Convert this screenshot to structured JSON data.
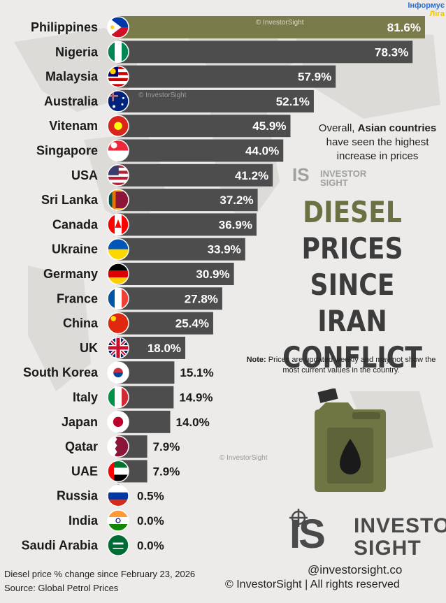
{
  "colors": {
    "bar": "#4d4d4d",
    "highlight": "#7a7b4a",
    "olive": "#6d7042",
    "dark": "#3c3c3c",
    "bg": "#ecebe9"
  },
  "chart_data": {
    "type": "bar",
    "orientation": "horizontal",
    "categories": [
      "Philippines",
      "Nigeria",
      "Malaysia",
      "Australia",
      "Vitenam",
      "Singapore",
      "USA",
      "Sri Lanka",
      "Canada",
      "Ukraine",
      "Germany",
      "France",
      "China",
      "UK",
      "South Korea",
      "Italy",
      "Japan",
      "Qatar",
      "UAE",
      "Russia",
      "India",
      "Saudi Arabia"
    ],
    "values": [
      81.6,
      78.3,
      57.9,
      52.1,
      45.9,
      44.0,
      41.2,
      37.2,
      36.9,
      33.9,
      30.9,
      27.8,
      25.4,
      18.0,
      15.1,
      14.9,
      14.0,
      7.9,
      7.9,
      0.5,
      0.0,
      0.0
    ],
    "labels": [
      "81.6%",
      "78.3%",
      "57.9%",
      "52.1%",
      "45.9%",
      "44.0%",
      "41.2%",
      "37.2%",
      "36.9%",
      "33.9%",
      "30.9%",
      "27.8%",
      "25.4%",
      "18.0%",
      "15.1%",
      "14.9%",
      "14.0%",
      "7.9%",
      "7.9%",
      "0.5%",
      "0.0%",
      "0.0%"
    ],
    "flags": [
      "philippines-flag",
      "nigeria-flag",
      "malaysia-flag",
      "australia-flag",
      "vietnam-flag",
      "singapore-flag",
      "usa-flag",
      "sri-lanka-flag",
      "canada-flag",
      "ukraine-flag",
      "germany-flag",
      "france-flag",
      "china-flag",
      "uk-flag",
      "south-korea-flag",
      "italy-flag",
      "japan-flag",
      "qatar-flag",
      "uae-flag",
      "russia-flag",
      "india-flag",
      "saudi-arabia-flag"
    ],
    "highlighted": "Philippines",
    "xlim": [
      0,
      81.6
    ],
    "grid": false,
    "title": "DIESEL PRICES SINCE IRAN CONFLICT",
    "xlabel": "",
    "ylabel": ""
  },
  "title_lines": [
    "DIESEL",
    "PRICES",
    "SINCE IRAN",
    "CONFLICT"
  ],
  "insight": {
    "prefix": "Overall, ",
    "bold": "Asian countries",
    "suffix": " have seen the highest increase in prices"
  },
  "note": {
    "label": "Note:",
    "text": " Prices are updated weekly and may not show the most current values in the country."
  },
  "watermarks": [
    "© InvestorSight",
    "© InvestorSight",
    "© InvestorSight"
  ],
  "logo_small": {
    "mark": "IS",
    "line1": "INVESTOR",
    "line2": "SIGHT"
  },
  "logo": {
    "mark": "IS",
    "line1": "INVESTOR",
    "line2": "SIGHT"
  },
  "handle": "@investorsight.co",
  "footer": {
    "line1": "Diesel price % change since February 23, 2026",
    "line2": "Source: Global Petrol Prices"
  },
  "rights": "© InvestorSight |  All rights reserved",
  "corner_tag": {
    "line1": "Інформує",
    "line2": "Ліга"
  }
}
